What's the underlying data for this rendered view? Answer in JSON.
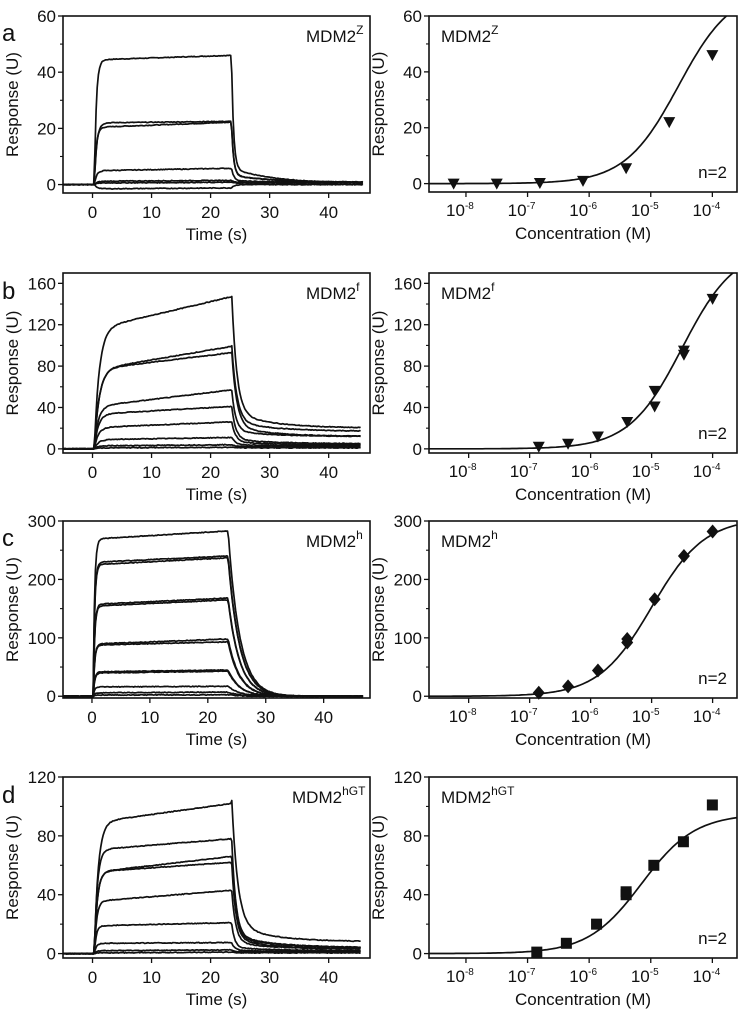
{
  "figure": {
    "panels": [
      "a",
      "b",
      "c",
      "d"
    ]
  },
  "chart_data": [
    {
      "id": "a-left",
      "panel_letter": "a",
      "type": "line",
      "title": "",
      "label_main": "MDM2",
      "label_sup": "Z",
      "xlabel": "Time (s)",
      "ylabel": "Response (U)",
      "xlim": [
        -5,
        47
      ],
      "ylim": [
        -3,
        60
      ],
      "xticks": [
        0,
        10,
        20,
        30,
        40
      ],
      "yticks": [
        0,
        20,
        40,
        60
      ],
      "yminor": [
        10,
        30,
        50
      ],
      "injection_start": 0.3,
      "injection_end": 23.5,
      "end_time": 46,
      "series": [
        {
          "name": "trace-1",
          "plateau_start": 44.5,
          "plateau_end": 46,
          "residual": 0.5,
          "kon": 3.0,
          "koff": 3.0
        },
        {
          "name": "trace-2",
          "plateau_start": 20.5,
          "plateau_end": 22.2,
          "residual": 0.8,
          "kon": 3.0,
          "koff": 3.0
        },
        {
          "name": "trace-3",
          "plateau_start": 22,
          "plateau_end": 22.5,
          "residual": 0.8,
          "kon": 2.5,
          "koff": 3.0
        },
        {
          "name": "trace-4",
          "plateau_start": 5,
          "plateau_end": 5.8,
          "residual": 0.8,
          "kon": 2.5,
          "koff": 2.5
        },
        {
          "name": "trace-5",
          "plateau_start": 1.2,
          "plateau_end": 1.5,
          "residual": 0.7,
          "kon": 2.0,
          "koff": 2.0
        },
        {
          "name": "trace-6",
          "plateau_start": 0.6,
          "plateau_end": 0.8,
          "residual": 0.5,
          "kon": 2.0,
          "koff": 2.0
        },
        {
          "name": "trace-7",
          "plateau_start": -1.5,
          "plateau_end": -1.2,
          "residual": 0.0,
          "kon": 2.0,
          "koff": 2.0
        }
      ]
    },
    {
      "id": "a-right",
      "panel_letter": "",
      "type": "scatter",
      "label_main": "MDM2",
      "label_sup": "Z",
      "annotation": "n=2",
      "marker": "triangle-down",
      "xlabel": "Concentration (M)",
      "ylabel": "Response (U)",
      "xscale": "log",
      "xlim_log10": [
        -8.6,
        -3.6
      ],
      "ylim": [
        -3,
        60
      ],
      "xticks_exp": [
        -8,
        -7,
        -6,
        -5,
        -4
      ],
      "yticks": [
        0,
        20,
        40,
        60
      ],
      "yminor": [
        10,
        30,
        50
      ],
      "fit": {
        "rmax": 70,
        "kd_log10": -4.55,
        "hill": 1.0
      },
      "points": [
        {
          "x_log10": -8.2,
          "y": 0
        },
        {
          "x_log10": -7.5,
          "y": 0
        },
        {
          "x_log10": -6.8,
          "y": 0.2
        },
        {
          "x_log10": -6.1,
          "y": 1
        },
        {
          "x_log10": -5.4,
          "y": 5.5
        },
        {
          "x_log10": -4.7,
          "y": 22
        },
        {
          "x_log10": -4.0,
          "y": 46
        }
      ]
    },
    {
      "id": "b-left",
      "panel_letter": "b",
      "type": "line",
      "label_main": "MDM2",
      "label_sup": "f",
      "xlabel": "Time (s)",
      "ylabel": "Response (U)",
      "xlim": [
        -5,
        47
      ],
      "ylim": [
        -4,
        170
      ],
      "xticks": [
        0,
        10,
        20,
        30,
        40
      ],
      "yticks": [
        0,
        40,
        80,
        120,
        160
      ],
      "yminor": [
        20,
        60,
        100,
        140
      ],
      "injection_start": 0.3,
      "injection_end": 23.5,
      "end_time": 45.5,
      "series": [
        {
          "name": "trace-1",
          "plateau_start": 118,
          "plateau_end": 147,
          "residual": 20,
          "kon": 1.2,
          "koff": 1.2
        },
        {
          "name": "trace-2",
          "plateau_start": 78,
          "plateau_end": 99,
          "residual": 17,
          "kon": 1.2,
          "koff": 1.2
        },
        {
          "name": "trace-3",
          "plateau_start": 78,
          "plateau_end": 93,
          "residual": 12,
          "kon": 1.2,
          "koff": 1.2
        },
        {
          "name": "trace-4",
          "plateau_start": 42,
          "plateau_end": 57,
          "residual": 12,
          "kon": 1.5,
          "koff": 1.5
        },
        {
          "name": "trace-5",
          "plateau_start": 34,
          "plateau_end": 41,
          "residual": 5,
          "kon": 1.5,
          "koff": 1.5
        },
        {
          "name": "trace-6",
          "plateau_start": 21,
          "plateau_end": 26,
          "residual": 4,
          "kon": 1.5,
          "koff": 1.5
        },
        {
          "name": "trace-7",
          "plateau_start": 9,
          "plateau_end": 11,
          "residual": 3,
          "kon": 1.5,
          "koff": 1.5
        },
        {
          "name": "trace-8",
          "plateau_start": 3,
          "plateau_end": 4,
          "residual": 2,
          "kon": 1.5,
          "koff": 1.5
        },
        {
          "name": "trace-9",
          "plateau_start": 1,
          "plateau_end": 1.5,
          "residual": 1,
          "kon": 1.5,
          "koff": 1.5
        }
      ]
    },
    {
      "id": "b-right",
      "panel_letter": "",
      "type": "scatter",
      "label_main": "MDM2",
      "label_sup": "f",
      "annotation": "n=2",
      "marker": "triangle-down",
      "xlabel": "Concentration (M)",
      "ylabel": "Response (U)",
      "xscale": "log",
      "xlim_log10": [
        -8.65,
        -3.6
      ],
      "ylim": [
        -4,
        170
      ],
      "xticks_exp": [
        -8,
        -7,
        -6,
        -5,
        -4
      ],
      "yticks": [
        0,
        40,
        80,
        120,
        160
      ],
      "yminor": [
        20,
        60,
        100,
        140
      ],
      "fit": {
        "rmax": 195,
        "kd_log10": -4.5,
        "hill": 1.0
      },
      "points": [
        {
          "x_log10": -6.85,
          "y": 2
        },
        {
          "x_log10": -6.37,
          "y": 5
        },
        {
          "x_log10": -5.88,
          "y": 12
        },
        {
          "x_log10": -5.4,
          "y": 26
        },
        {
          "x_log10": -4.95,
          "y": 56
        },
        {
          "x_log10": -4.95,
          "y": 41
        },
        {
          "x_log10": -4.47,
          "y": 95
        },
        {
          "x_log10": -4.47,
          "y": 91
        },
        {
          "x_log10": -4.0,
          "y": 145
        }
      ]
    },
    {
      "id": "c-left",
      "panel_letter": "c",
      "type": "line",
      "label_main": "MDM2",
      "label_sup": "h",
      "xlabel": "Time (s)",
      "ylabel": "Response (U)",
      "xlim": [
        -5,
        48
      ],
      "ylim": [
        -3,
        300
      ],
      "xticks": [
        0,
        10,
        20,
        30,
        40
      ],
      "yticks": [
        0,
        100,
        200,
        300
      ],
      "yminor": [
        50,
        150,
        250
      ],
      "injection_start": 0.2,
      "injection_end": 23.5,
      "end_time": 47,
      "series": [
        {
          "name": "trace-1",
          "plateau_start": 270,
          "plateau_end": 283,
          "residual": 0,
          "kon": 4.0,
          "koff": 0.5
        },
        {
          "name": "trace-2",
          "plateau_start": 230,
          "plateau_end": 240,
          "residual": 0,
          "kon": 4.0,
          "koff": 0.5
        },
        {
          "name": "trace-3",
          "plateau_start": 226,
          "plateau_end": 237,
          "residual": 0,
          "kon": 4.0,
          "koff": 0.5
        },
        {
          "name": "trace-4",
          "plateau_start": 158,
          "plateau_end": 168,
          "residual": 0,
          "kon": 4.0,
          "koff": 0.5
        },
        {
          "name": "trace-5",
          "plateau_start": 155,
          "plateau_end": 165,
          "residual": 0,
          "kon": 4.0,
          "koff": 0.5
        },
        {
          "name": "trace-6",
          "plateau_start": 90,
          "plateau_end": 98,
          "residual": 0,
          "kon": 4.0,
          "koff": 0.5
        },
        {
          "name": "trace-7",
          "plateau_start": 88,
          "plateau_end": 93,
          "residual": 0,
          "kon": 4.0,
          "koff": 0.5
        },
        {
          "name": "trace-8",
          "plateau_start": 42,
          "plateau_end": 45,
          "residual": 0,
          "kon": 4.0,
          "koff": 0.5
        },
        {
          "name": "trace-9",
          "plateau_start": 40,
          "plateau_end": 43,
          "residual": 0,
          "kon": 4.0,
          "koff": 0.5
        },
        {
          "name": "trace-10",
          "plateau_start": 16,
          "plateau_end": 17,
          "residual": 0,
          "kon": 4.0,
          "koff": 0.5
        },
        {
          "name": "trace-11",
          "plateau_start": 6,
          "plateau_end": 7,
          "residual": 0,
          "kon": 4.0,
          "koff": 0.5
        },
        {
          "name": "trace-12",
          "plateau_start": 2,
          "plateau_end": 2.5,
          "residual": 0,
          "kon": 4.0,
          "koff": 0.5
        }
      ]
    },
    {
      "id": "c-right",
      "panel_letter": "",
      "type": "scatter",
      "label_main": "MDM2",
      "label_sup": "h",
      "annotation": "n=2",
      "marker": "diamond",
      "xlabel": "Concentration (M)",
      "ylabel": "Response (U)",
      "xscale": "log",
      "xlim_log10": [
        -8.65,
        -3.6
      ],
      "ylim": [
        -3,
        300
      ],
      "xticks_exp": [
        -8,
        -7,
        -6,
        -5,
        -4
      ],
      "yticks": [
        0,
        100,
        200,
        300
      ],
      "yminor": [
        50,
        150,
        250
      ],
      "fit": {
        "rmax": 305,
        "kd_log10": -5.0,
        "hill": 1.0
      },
      "points": [
        {
          "x_log10": -6.85,
          "y": 6
        },
        {
          "x_log10": -6.37,
          "y": 17
        },
        {
          "x_log10": -5.88,
          "y": 44
        },
        {
          "x_log10": -5.4,
          "y": 98
        },
        {
          "x_log10": -5.4,
          "y": 92
        },
        {
          "x_log10": -4.95,
          "y": 166
        },
        {
          "x_log10": -4.47,
          "y": 240
        },
        {
          "x_log10": -4.0,
          "y": 282
        }
      ]
    },
    {
      "id": "d-left",
      "panel_letter": "d",
      "type": "line",
      "label_main": "MDM2",
      "label_sup": "hGT",
      "xlabel": "Time (s)",
      "ylabel": "Response (U)",
      "xlim": [
        -5,
        47
      ],
      "ylim": [
        -3,
        120
      ],
      "xticks": [
        0,
        10,
        20,
        30,
        40
      ],
      "yticks": [
        0,
        40,
        80,
        120
      ],
      "yminor": [
        20,
        60,
        100
      ],
      "injection_start": 0.3,
      "injection_end": 23.5,
      "end_time": 45.5,
      "series": [
        {
          "name": "trace-1",
          "plateau_start": 90,
          "plateau_end": 102,
          "residual": 8,
          "kon": 1.5,
          "koff": 1.0
        },
        {
          "name": "trace-2",
          "plateau_start": 71,
          "plateau_end": 78,
          "residual": 4,
          "kon": 2.0,
          "koff": 1.5
        },
        {
          "name": "trace-3",
          "plateau_start": 56,
          "plateau_end": 66,
          "residual": 4,
          "kon": 2.0,
          "koff": 1.5
        },
        {
          "name": "trace-4",
          "plateau_start": 56,
          "plateau_end": 62,
          "residual": 3,
          "kon": 2.0,
          "koff": 1.5
        },
        {
          "name": "trace-5",
          "plateau_start": 36,
          "plateau_end": 43,
          "residual": 3,
          "kon": 2.5,
          "koff": 1.5
        },
        {
          "name": "trace-6",
          "plateau_start": 19,
          "plateau_end": 21,
          "residual": 2,
          "kon": 3.0,
          "koff": 2.0
        },
        {
          "name": "trace-7",
          "plateau_start": 7,
          "plateau_end": 7.5,
          "residual": 1.5,
          "kon": 3.0,
          "koff": 2.0
        },
        {
          "name": "trace-8",
          "plateau_start": 2,
          "plateau_end": 2.5,
          "residual": 1,
          "kon": 3.0,
          "koff": 2.0
        },
        {
          "name": "trace-9",
          "plateau_start": 0.5,
          "plateau_end": 1,
          "residual": 0.5,
          "kon": 3.0,
          "koff": 2.0
        }
      ]
    },
    {
      "id": "d-right",
      "panel_letter": "",
      "type": "scatter",
      "label_main": "MDM2",
      "label_sup": "hGT",
      "annotation": "n=2",
      "marker": "square",
      "xlabel": "Concentration (M)",
      "ylabel": "Response (U)",
      "xscale": "log",
      "xlim_log10": [
        -8.6,
        -3.6
      ],
      "ylim": [
        -3,
        120
      ],
      "xticks_exp": [
        -8,
        -7,
        -6,
        -5,
        -4
      ],
      "yticks": [
        0,
        40,
        80,
        120
      ],
      "yminor": [
        20,
        60,
        100
      ],
      "fit": {
        "rmax": 95,
        "kd_log10": -5.15,
        "hill": 1.0
      },
      "points": [
        {
          "x_log10": -6.85,
          "y": 1
        },
        {
          "x_log10": -6.37,
          "y": 7
        },
        {
          "x_log10": -5.88,
          "y": 20
        },
        {
          "x_log10": -5.4,
          "y": 42
        },
        {
          "x_log10": -5.4,
          "y": 40
        },
        {
          "x_log10": -4.95,
          "y": 60
        },
        {
          "x_log10": -4.47,
          "y": 76
        },
        {
          "x_log10": -4.0,
          "y": 101
        }
      ]
    }
  ]
}
